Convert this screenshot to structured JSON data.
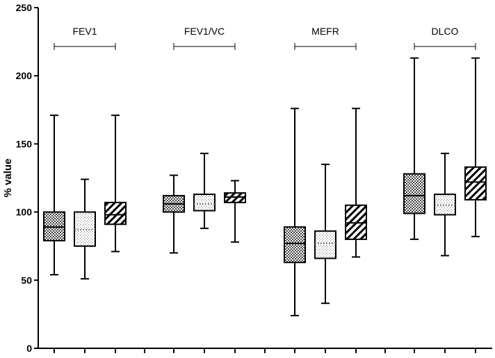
{
  "chart_data": {
    "type": "box",
    "ylabel": "% value",
    "xlabel": "",
    "title": "",
    "ylim": [
      0,
      250
    ],
    "yticks": [
      0,
      50,
      100,
      150,
      200,
      250
    ],
    "grid": false,
    "legend": "none",
    "box_fills": [
      "crosshatch",
      "dotted",
      "diagonal"
    ],
    "groups": [
      {
        "label": "FEV1",
        "boxes": [
          {
            "min": 54,
            "q1": 79,
            "median": 89,
            "q3": 100,
            "max": 171,
            "fill": "crosshatch"
          },
          {
            "min": 51,
            "q1": 75,
            "median": 87,
            "q3": 100,
            "max": 124,
            "fill": "dotted"
          },
          {
            "min": 71,
            "q1": 91,
            "median": 98,
            "q3": 107,
            "max": 171,
            "fill": "diagonal"
          }
        ]
      },
      {
        "label": "FEV1/VC",
        "boxes": [
          {
            "min": 70,
            "q1": 100,
            "median": 106,
            "q3": 112,
            "max": 127,
            "fill": "crosshatch"
          },
          {
            "min": 88,
            "q1": 101,
            "median": 106,
            "q3": 113,
            "max": 143,
            "fill": "dotted"
          },
          {
            "min": 78,
            "q1": 107,
            "median": 111,
            "q3": 114,
            "max": 123,
            "fill": "diagonal"
          }
        ]
      },
      {
        "label": "MEFR",
        "boxes": [
          {
            "min": 24,
            "q1": 63,
            "median": 77,
            "q3": 89,
            "max": 176,
            "fill": "crosshatch"
          },
          {
            "min": 33,
            "q1": 66,
            "median": 77,
            "q3": 86,
            "max": 135,
            "fill": "dotted"
          },
          {
            "min": 67,
            "q1": 80,
            "median": 92,
            "q3": 105,
            "max": 176,
            "fill": "diagonal"
          }
        ]
      },
      {
        "label": "DLCO",
        "boxes": [
          {
            "min": 80,
            "q1": 99,
            "median": 112,
            "q3": 128,
            "max": 213,
            "fill": "crosshatch"
          },
          {
            "min": 68,
            "q1": 98,
            "median": 105,
            "q3": 113,
            "max": 143,
            "fill": "dotted"
          },
          {
            "min": 82,
            "q1": 109,
            "median": 122,
            "q3": 133,
            "max": 213,
            "fill": "diagonal"
          }
        ]
      }
    ]
  }
}
